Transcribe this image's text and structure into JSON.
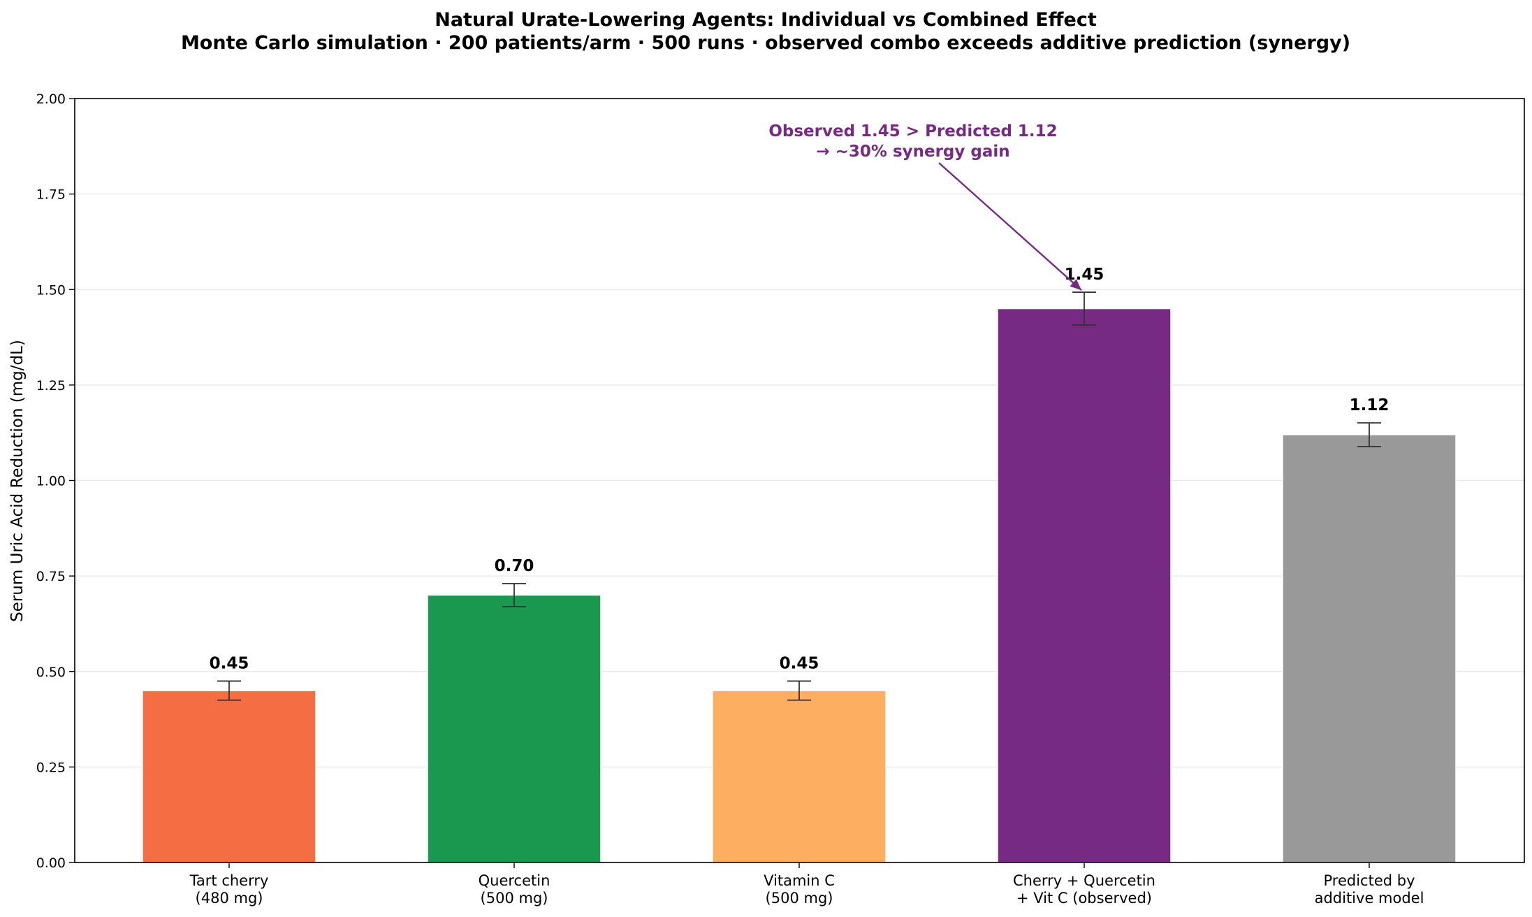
{
  "chart_data": {
    "type": "bar",
    "title": "Natural Urate-Lowering Agents: Individual vs Combined Effect",
    "subtitle": "Monte Carlo simulation · 200 patients/arm · 500 runs · observed combo exceeds additive prediction (synergy)",
    "ylabel": "Serum Uric Acid Reduction (mg/dL)",
    "xlabel": "",
    "ylim": [
      0,
      2.0
    ],
    "yticks": [
      "0.00",
      "0.25",
      "0.50",
      "0.75",
      "1.00",
      "1.25",
      "1.50",
      "1.75",
      "2.00"
    ],
    "grid": "y",
    "categories": [
      [
        "Tart cherry",
        "(480 mg)"
      ],
      [
        "Quercetin",
        "(500 mg)"
      ],
      [
        "Vitamin C",
        "(500 mg)"
      ],
      [
        "Cherry + Quercetin",
        "+ Vit C (observed)"
      ],
      [
        "Predicted by",
        "additive model"
      ]
    ],
    "values": [
      0.45,
      0.7,
      0.45,
      1.45,
      1.12
    ],
    "value_labels": [
      "0.45",
      "0.70",
      "0.45",
      "1.45",
      "1.12"
    ],
    "errors": [
      0.025,
      0.03,
      0.025,
      0.043,
      0.031
    ],
    "colors": [
      "#f46d43",
      "#1a9850",
      "#fdae61",
      "#762a83",
      "#999999"
    ],
    "annotation": {
      "lines": [
        "Observed 1.45 > Predicted 1.12",
        "→ ~30% synergy gain"
      ],
      "color": "#762a83",
      "target_index": 3
    }
  }
}
